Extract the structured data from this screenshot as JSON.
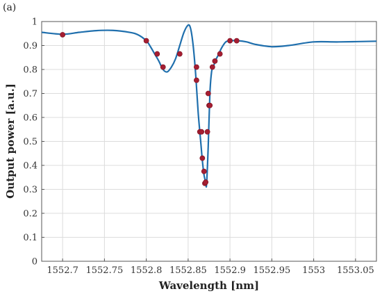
{
  "panel_label": "(a)",
  "chart_data": {
    "type": "line",
    "title": "",
    "xlabel": "Wavelength [nm]",
    "ylabel": "Output power [a.u.]",
    "xlim": [
      1552.675,
      1553.075
    ],
    "ylim": [
      0,
      1
    ],
    "xticks": [
      1552.7,
      1552.75,
      1552.8,
      1552.85,
      1552.9,
      1552.95,
      1553,
      1553.05
    ],
    "xtick_labels": [
      "1552.7",
      "1552.75",
      "1552.8",
      "1552.85",
      "1552.9",
      "1552.95",
      "1553",
      "1553.05"
    ],
    "yticks": [
      0,
      0.1,
      0.2,
      0.3,
      0.4,
      0.5,
      0.6,
      0.7,
      0.8,
      0.9,
      1
    ],
    "ytick_labels": [
      "0",
      "0.1",
      "0.2",
      "0.3",
      "0.4",
      "0.5",
      "0.6",
      "0.7",
      "0.8",
      "0.9",
      "1"
    ],
    "grid": true,
    "series": [
      {
        "kind": "line",
        "color": "#1f6fad",
        "x": [
          1552.675,
          1552.7,
          1552.72,
          1552.74,
          1552.76,
          1552.78,
          1552.79,
          1552.8,
          1552.805,
          1552.81,
          1552.815,
          1552.82,
          1552.825,
          1552.83,
          1552.835,
          1552.84,
          1552.845,
          1552.85,
          1552.853,
          1552.856,
          1552.859,
          1552.862,
          1552.865,
          1552.867,
          1552.869,
          1552.871,
          1552.872,
          1552.874,
          1552.876,
          1552.878,
          1552.88,
          1552.883,
          1552.886,
          1552.89,
          1552.895,
          1552.9,
          1552.91,
          1552.92,
          1552.93,
          1552.95,
          1552.97,
          1553.0,
          1553.03,
          1553.075
        ],
        "y": [
          0.955,
          0.947,
          0.955,
          0.962,
          0.963,
          0.955,
          0.945,
          0.92,
          0.895,
          0.865,
          0.835,
          0.8,
          0.79,
          0.81,
          0.845,
          0.9,
          0.955,
          0.985,
          0.97,
          0.9,
          0.78,
          0.62,
          0.5,
          0.42,
          0.36,
          0.33,
          0.32,
          0.48,
          0.7,
          0.79,
          0.81,
          0.84,
          0.86,
          0.89,
          0.915,
          0.92,
          0.92,
          0.915,
          0.905,
          0.895,
          0.9,
          0.915,
          0.915,
          0.918
        ]
      },
      {
        "kind": "scatter",
        "color": "#a51e32",
        "x": [
          1552.7,
          1552.8,
          1552.813,
          1552.82,
          1552.84,
          1552.86,
          1552.86,
          1552.864,
          1552.866,
          1552.867,
          1552.869,
          1552.87,
          1552.871,
          1552.873,
          1552.874,
          1552.875,
          1552.876,
          1552.879,
          1552.882,
          1552.888,
          1552.9,
          1552.908
        ],
        "y": [
          0.945,
          0.92,
          0.865,
          0.81,
          0.865,
          0.81,
          0.755,
          0.54,
          0.54,
          0.43,
          0.375,
          0.325,
          0.33,
          0.54,
          0.7,
          0.65,
          0.65,
          0.81,
          0.835,
          0.865,
          0.92,
          0.92
        ]
      }
    ]
  }
}
